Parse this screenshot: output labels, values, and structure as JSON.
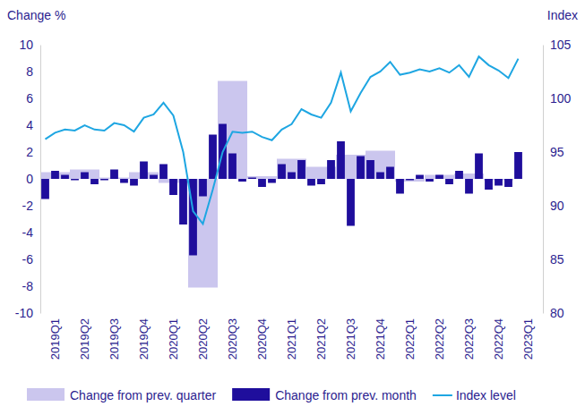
{
  "chart_data": {
    "type": "bar",
    "y_label": "Change %",
    "y2_label": "Index",
    "categories": [
      null,
      "2019Q1",
      null,
      null,
      "2019Q2",
      null,
      null,
      "2019Q3",
      null,
      null,
      "2019Q4",
      null,
      null,
      "2020Q1",
      null,
      null,
      "2020Q2",
      null,
      null,
      "2020Q3",
      null,
      null,
      "2020Q4",
      null,
      null,
      "2021Q1",
      null,
      null,
      "2021Q2",
      null,
      null,
      "2021Q3",
      null,
      null,
      "2021Q4",
      null,
      null,
      "2022Q1",
      null,
      null,
      "2022Q2",
      null,
      null,
      "2022Q3",
      null,
      null,
      "2022Q4",
      null,
      null,
      "2023Q1",
      null
    ],
    "series": [
      {
        "name": "Change from prev. quarter",
        "type": "bar",
        "color": "#cbc6ee",
        "values": [
          null,
          0.5,
          null,
          null,
          0.7,
          null,
          null,
          0.1,
          null,
          null,
          0.5,
          null,
          null,
          -0.3,
          null,
          null,
          -8.1,
          null,
          null,
          7.3,
          null,
          null,
          0.2,
          null,
          null,
          1.5,
          null,
          null,
          0.9,
          null,
          null,
          1.8,
          null,
          null,
          2.1,
          null,
          null,
          -0.2,
          null,
          null,
          0.3,
          null,
          null,
          0.4,
          null,
          null,
          -0.1,
          null,
          null,
          null,
          null
        ]
      },
      {
        "name": "Change from prev. month",
        "type": "bar",
        "color": "#1f0e9c",
        "values": [
          -1.5,
          0.6,
          0.3,
          -0.1,
          0.5,
          -0.4,
          -0.1,
          0.7,
          -0.3,
          -0.5,
          1.3,
          0.3,
          1.1,
          -1.2,
          -3.4,
          -5.7,
          -1.3,
          3.3,
          4.1,
          1.9,
          -0.2,
          0.1,
          -0.6,
          -0.3,
          1.1,
          0.5,
          1.4,
          -0.5,
          -0.4,
          1.4,
          2.8,
          -3.5,
          1.7,
          1.4,
          0.5,
          0.9,
          -1.1,
          -0.1,
          0.3,
          -0.2,
          0.3,
          -0.4,
          0.6,
          -1.1,
          1.9,
          -0.8,
          -0.5,
          -0.6,
          2.0,
          null,
          null
        ]
      },
      {
        "name": "Index level",
        "type": "line",
        "color": "#1ea6e2",
        "axis": "y2",
        "values": [
          96.2,
          96.8,
          97.1,
          97.0,
          97.5,
          97.1,
          97.0,
          97.7,
          97.5,
          96.9,
          98.2,
          98.5,
          99.6,
          98.4,
          95.0,
          89.5,
          88.3,
          91.5,
          95.0,
          96.9,
          96.8,
          96.9,
          96.4,
          96.1,
          97.1,
          97.6,
          99.0,
          98.5,
          98.2,
          99.6,
          102.4,
          98.8,
          100.5,
          102.0,
          102.5,
          103.4,
          102.2,
          102.4,
          102.7,
          102.5,
          102.8,
          102.4,
          103.1,
          102.0,
          103.9,
          103.1,
          102.6,
          101.9,
          103.7,
          null,
          null
        ]
      }
    ],
    "ylim": [
      -10,
      10
    ],
    "yticks": [
      -10,
      -8,
      -6,
      -4,
      -2,
      0,
      2,
      4,
      6,
      8,
      10
    ],
    "y2lim": [
      80,
      105
    ],
    "y2ticks": [
      80,
      85,
      90,
      95,
      100,
      105
    ],
    "legend": "bottom"
  }
}
